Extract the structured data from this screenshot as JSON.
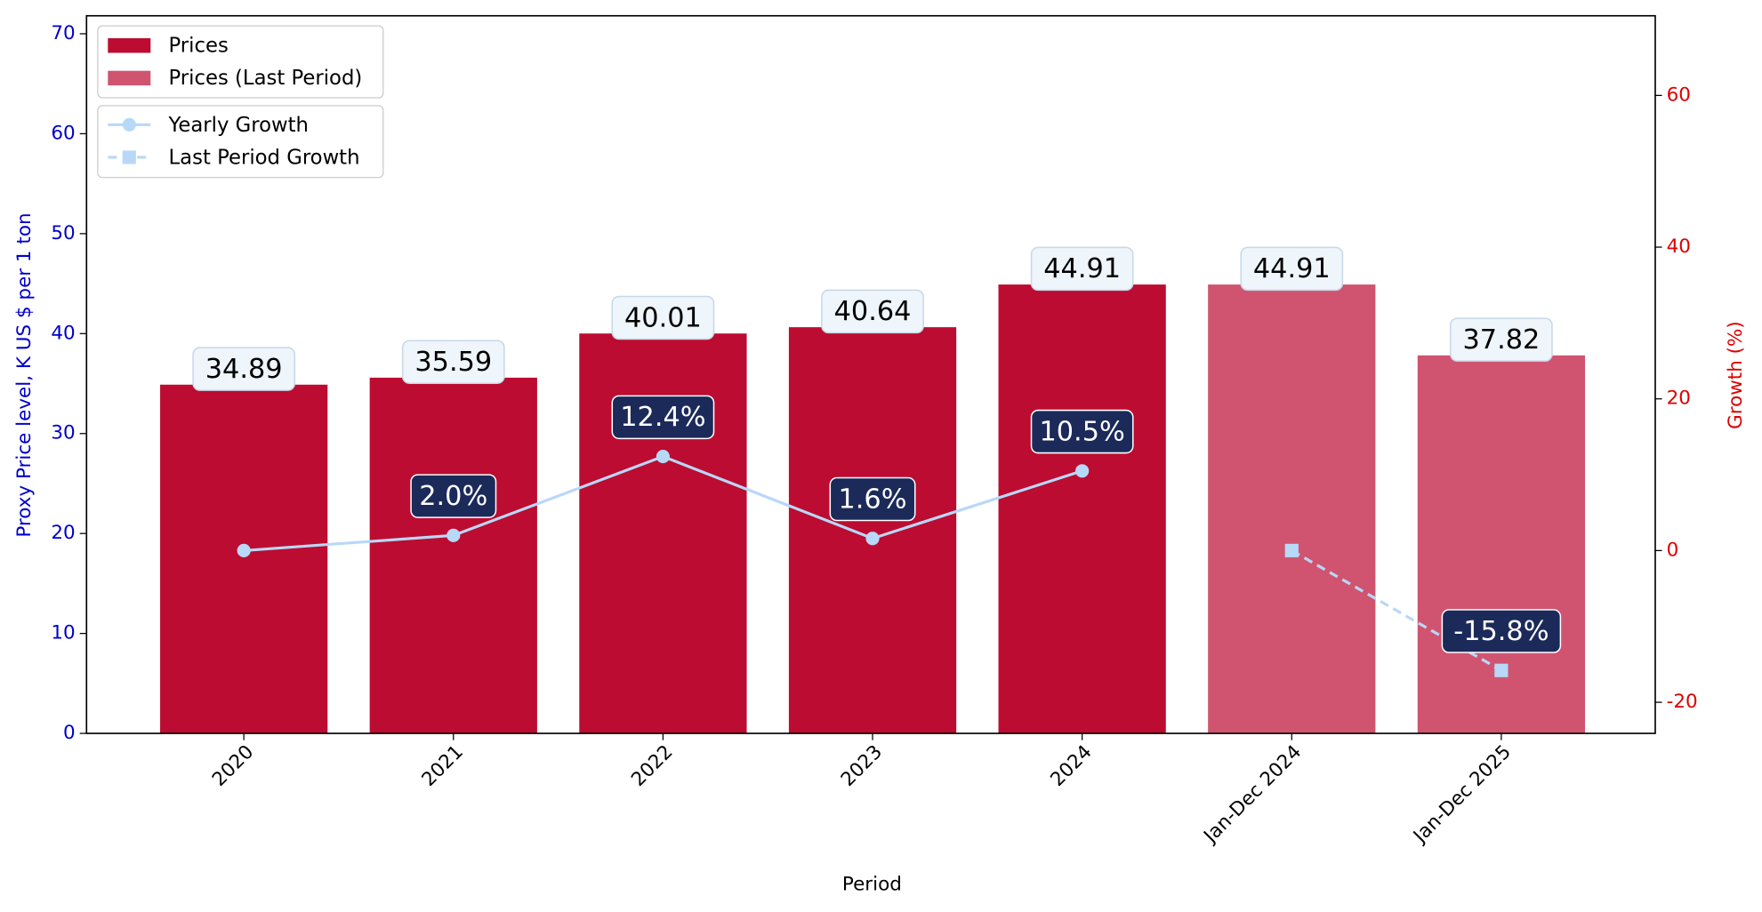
{
  "chart_data": {
    "type": "bar",
    "categories": [
      "2020",
      "2021",
      "2022",
      "2023",
      "2024",
      "Jan-Dec 2024",
      "Jan-Dec 2025"
    ],
    "xlabel": "Period",
    "ylabel": "Proxy Price level, K US $ per 1 ton",
    "y2label": "Growth (%)",
    "ylim": [
      0,
      71.8
    ],
    "yticks": [
      0,
      10,
      20,
      30,
      40,
      50,
      60,
      70
    ],
    "y2lim": [
      -24.1,
      70.5
    ],
    "y2ticks": [
      -20,
      0,
      20,
      40,
      60
    ],
    "series": [
      {
        "name": "Prices",
        "type": "bar",
        "color": "#bc0c31",
        "values": [
          34.89,
          35.59,
          40.01,
          40.64,
          44.91,
          null,
          null
        ]
      },
      {
        "name": "Prices (Last Period)",
        "type": "bar",
        "color": "#d05470",
        "values": [
          null,
          null,
          null,
          null,
          null,
          44.91,
          37.82
        ]
      },
      {
        "name": "Yearly Growth",
        "type": "line",
        "axis": "y2",
        "color": "#b8d8f8",
        "marker": "circle",
        "dash": false,
        "values": [
          0,
          2.0,
          12.4,
          1.6,
          10.5,
          null,
          null
        ],
        "value_labels": [
          null,
          "2.0%",
          "12.4%",
          "1.6%",
          "10.5%",
          null,
          null
        ]
      },
      {
        "name": "Last Period Growth",
        "type": "line",
        "axis": "y2",
        "color": "#b8d8f8",
        "marker": "square",
        "dash": true,
        "values": [
          null,
          null,
          null,
          null,
          null,
          0,
          -15.8
        ],
        "value_labels": [
          null,
          null,
          null,
          null,
          null,
          null,
          "-15.8%"
        ]
      }
    ]
  }
}
